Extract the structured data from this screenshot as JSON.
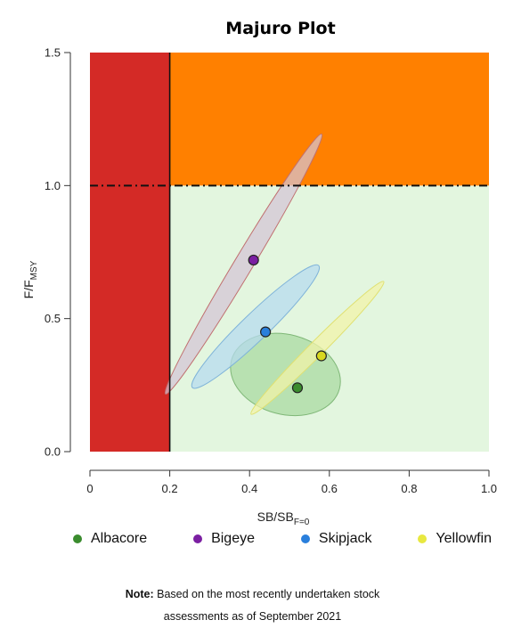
{
  "chart_data": {
    "type": "scatter",
    "title": "Majuro Plot",
    "xlabel_main": "SB/SB",
    "xlabel_sub": "F=0",
    "ylabel_main": "F/F",
    "ylabel_sub": "MSY",
    "xlim": [
      0,
      1.0
    ],
    "ylim": [
      0,
      1.5
    ],
    "x_ticks": [
      "0",
      "0.2",
      "0.4",
      "0.6",
      "0.8",
      "1.0"
    ],
    "y_ticks": [
      "0.0",
      "0.5",
      "1.0",
      "1.5"
    ],
    "reference_lines": {
      "limit_sb": 0.2,
      "f_msy": 1.0
    },
    "zones": {
      "red": "#d42a26",
      "orange": "#ff8000",
      "green": "#e3f6df"
    },
    "series": [
      {
        "name": "Albacore",
        "x": 0.52,
        "y": 0.24,
        "color": "#3a8c2e",
        "ellipse": {
          "cx": 0.49,
          "cy": 0.29,
          "rx": 0.14,
          "ry": 0.15,
          "angle_deg": 15,
          "fill": "#a8d8a0",
          "stroke": "#7fb777"
        }
      },
      {
        "name": "Bigeye",
        "x": 0.41,
        "y": 0.72,
        "color": "#7b1fa2",
        "ellipse": {
          "cx": 0.385,
          "cy": 0.705,
          "rx": 0.38,
          "ry": 0.035,
          "angle_deg": -59,
          "fill": "#d4c3d6",
          "stroke": "#c07070"
        }
      },
      {
        "name": "Skipjack",
        "x": 0.44,
        "y": 0.45,
        "color": "#2a7fdc",
        "ellipse": {
          "cx": 0.415,
          "cy": 0.47,
          "rx": 0.22,
          "ry": 0.05,
          "angle_deg": -44,
          "fill": "#b5d9f0",
          "stroke": "#7fb3d9"
        }
      },
      {
        "name": "Yellowfin",
        "x": 0.58,
        "y": 0.36,
        "color": "#d8d820",
        "ellipse": {
          "cx": 0.57,
          "cy": 0.39,
          "rx": 0.235,
          "ry": 0.028,
          "angle_deg": -45,
          "fill": "#f3f3a8",
          "stroke": "#e0e070"
        }
      }
    ]
  },
  "legend": {
    "items": [
      {
        "label": "Albacore",
        "color": "#3a8c2e"
      },
      {
        "label": "Bigeye",
        "color": "#7b1fa2"
      },
      {
        "label": "Skipjack",
        "color": "#2a7fdc"
      },
      {
        "label": "Yellowfin",
        "color": "#e8e840"
      }
    ]
  },
  "note": {
    "prefix": "Note:",
    "line1": "Based on the most recently undertaken stock",
    "line2": "assessments as of September 2021"
  }
}
